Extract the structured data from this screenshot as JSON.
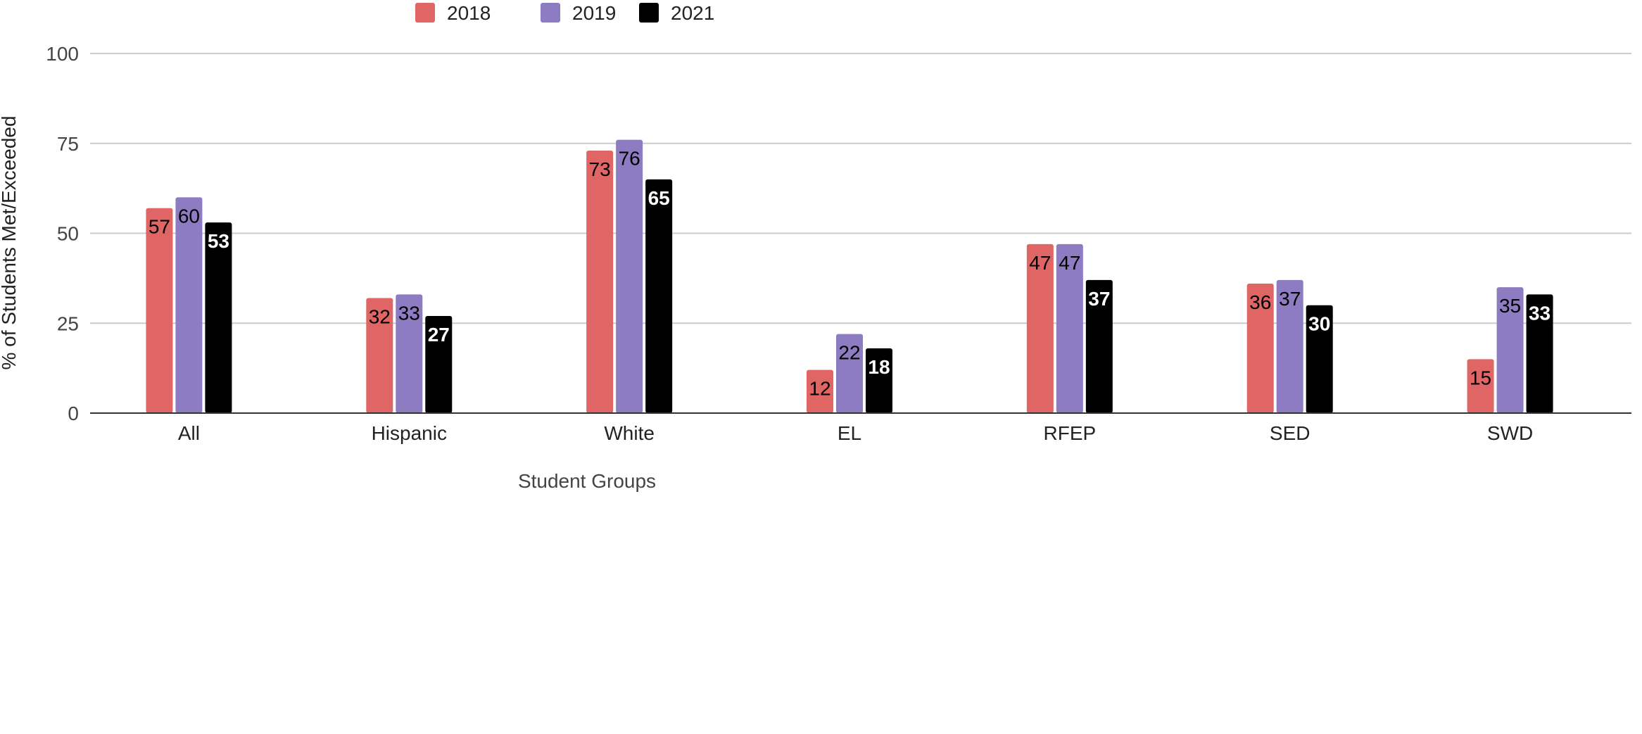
{
  "chart_data": {
    "type": "bar",
    "title": "",
    "xlabel": "Student Groups",
    "ylabel": "% of Students Met/Exceeded",
    "categories": [
      "All",
      "Hispanic",
      "White",
      "EL",
      "RFEP",
      "SED",
      "SWD"
    ],
    "series": [
      {
        "name": "2018",
        "color": "#e06666",
        "label_color": "#000000",
        "values": [
          57,
          32,
          73,
          12,
          47,
          36,
          15
        ]
      },
      {
        "name": "2019",
        "color": "#8e7cc3",
        "label_color": "#000000",
        "values": [
          60,
          33,
          76,
          22,
          47,
          37,
          35
        ]
      },
      {
        "name": "2021",
        "color": "#000000",
        "label_color": "#ffffff",
        "values": [
          53,
          27,
          65,
          18,
          37,
          30,
          33
        ]
      }
    ],
    "ylim": [
      0,
      100
    ],
    "yticks": [
      0,
      25,
      50,
      75,
      100
    ],
    "grid": true,
    "legend_position": "top-center",
    "data_labels": true
  }
}
